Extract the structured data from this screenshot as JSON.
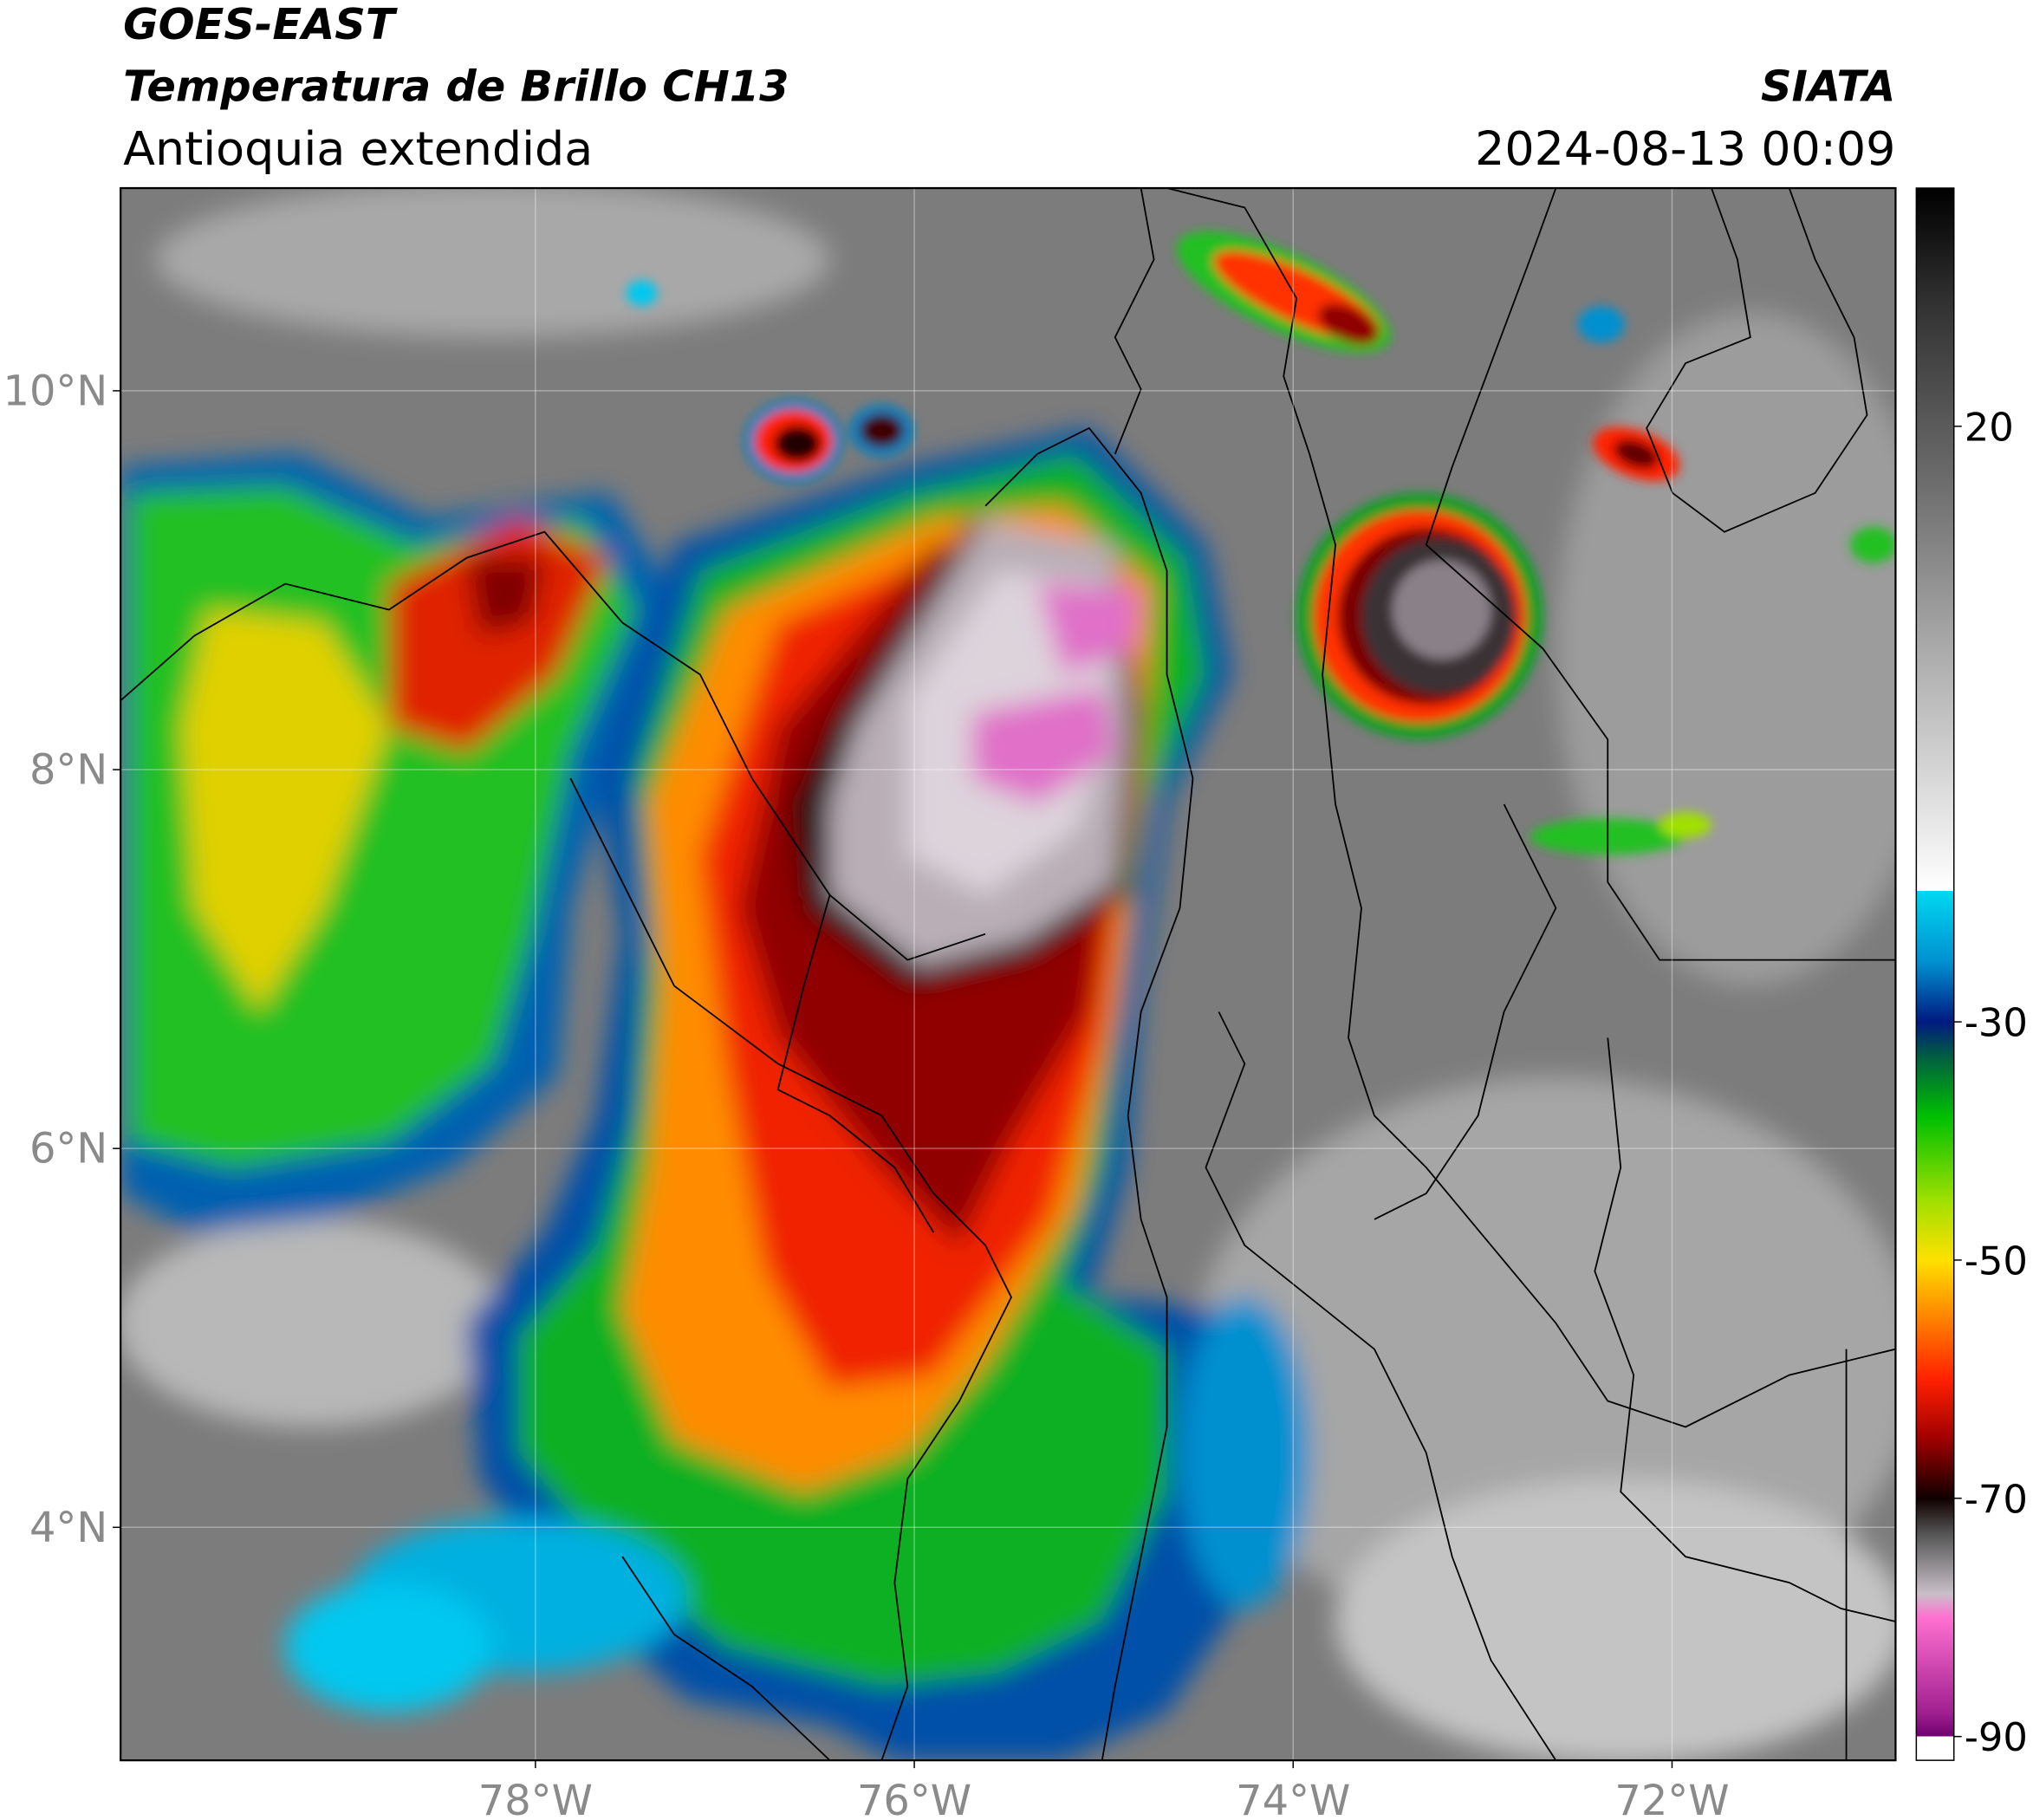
{
  "header": {
    "title": "GOES-EAST",
    "subtitle": "Temperatura de Brillo CH13",
    "region": "Antioquia extendida",
    "source": "SIATA",
    "datetime": "2024-08-13 00:09"
  },
  "map": {
    "xlim": [
      -80.19,
      -70.82
    ],
    "ylim": [
      2.77,
      11.07
    ],
    "xticks": [
      {
        "value": -78,
        "label": "78°W"
      },
      {
        "value": -76,
        "label": "76°W"
      },
      {
        "value": -74,
        "label": "74°W"
      },
      {
        "value": -72,
        "label": "72°W"
      }
    ],
    "yticks": [
      {
        "value": 4,
        "label": "4°N"
      },
      {
        "value": 6,
        "label": "6°N"
      },
      {
        "value": 8,
        "label": "8°N"
      },
      {
        "value": 10,
        "label": "10°N"
      }
    ],
    "grid": true
  },
  "colorbar": {
    "clim": [
      -92,
      40
    ],
    "ticks": [
      20,
      -30,
      -50,
      -70,
      -90
    ],
    "stops": [
      {
        "value": 40,
        "color": "#000000"
      },
      {
        "value": 30,
        "color": "#333333"
      },
      {
        "value": 15,
        "color": "#6e6e6e"
      },
      {
        "value": 0,
        "color": "#b0b0b0"
      },
      {
        "value": -19,
        "color": "#ffffff"
      },
      {
        "value": -19,
        "color": "#00d8f0"
      },
      {
        "value": -25,
        "color": "#0090d0"
      },
      {
        "value": -30,
        "color": "#001a80"
      },
      {
        "value": -33,
        "color": "#006040"
      },
      {
        "value": -38,
        "color": "#00c000"
      },
      {
        "value": -45,
        "color": "#a0e000"
      },
      {
        "value": -50,
        "color": "#ffe000"
      },
      {
        "value": -55,
        "color": "#ff8000"
      },
      {
        "value": -60,
        "color": "#ff2000"
      },
      {
        "value": -65,
        "color": "#a00000"
      },
      {
        "value": -70,
        "color": "#100000"
      },
      {
        "value": -73,
        "color": "#555555"
      },
      {
        "value": -78,
        "color": "#c8c0c8"
      },
      {
        "value": -80,
        "color": "#ff70d0"
      },
      {
        "value": -88,
        "color": "#a02090"
      },
      {
        "value": -90,
        "color": "#700070"
      },
      {
        "value": -90,
        "color": "#ffffff"
      },
      {
        "value": -92,
        "color": "#ffffff"
      }
    ]
  }
}
